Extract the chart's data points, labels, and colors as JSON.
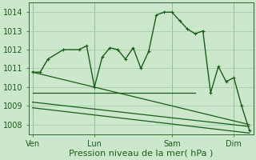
{
  "bg_color": "#cce8cc",
  "grid_color": "#aaccaa",
  "line_color": "#1a5c1a",
  "ylabel_text": "Pression niveau de la mer( hPa )",
  "xtick_labels": [
    "Ven",
    "Lun",
    "Sam",
    "Dim"
  ],
  "xtick_positions": [
    0,
    8,
    18,
    26
  ],
  "ylim": [
    1007.5,
    1014.5
  ],
  "yticks": [
    1008,
    1009,
    1010,
    1011,
    1012,
    1013,
    1014
  ],
  "line1_x": [
    0,
    1,
    2,
    4,
    6,
    7,
    8,
    9,
    10,
    11,
    12,
    13,
    14,
    15,
    16,
    17,
    18,
    19,
    20,
    21,
    22,
    23,
    24,
    25,
    26,
    27,
    28
  ],
  "line1_y": [
    1010.8,
    1010.8,
    1011.5,
    1012.0,
    1012.0,
    1012.2,
    1010.0,
    1011.6,
    1012.1,
    1012.0,
    1011.5,
    1012.1,
    1011.0,
    1011.9,
    1013.85,
    1014.0,
    1014.0,
    1013.55,
    1013.1,
    1012.85,
    1013.0,
    1009.7,
    1011.1,
    1010.3,
    1010.5,
    1009.0,
    1007.7
  ],
  "line2_x": [
    0,
    21
  ],
  "line2_y": [
    1009.7,
    1009.7
  ],
  "line3_x": [
    0,
    28
  ],
  "line3_y": [
    1009.2,
    1007.9
  ],
  "line4_x": [
    0,
    28
  ],
  "line4_y": [
    1008.9,
    1007.55
  ],
  "line5_x": [
    0,
    28
  ],
  "line5_y": [
    1010.8,
    1008.0
  ],
  "vline_positions": [
    0,
    8,
    18,
    26
  ],
  "xlim": [
    -0.5,
    28.5
  ],
  "figsize": [
    3.2,
    2.0
  ],
  "dpi": 100,
  "font_color": "#1a5c1a",
  "tick_fontsize": 7,
  "xlabel_fontsize": 8
}
